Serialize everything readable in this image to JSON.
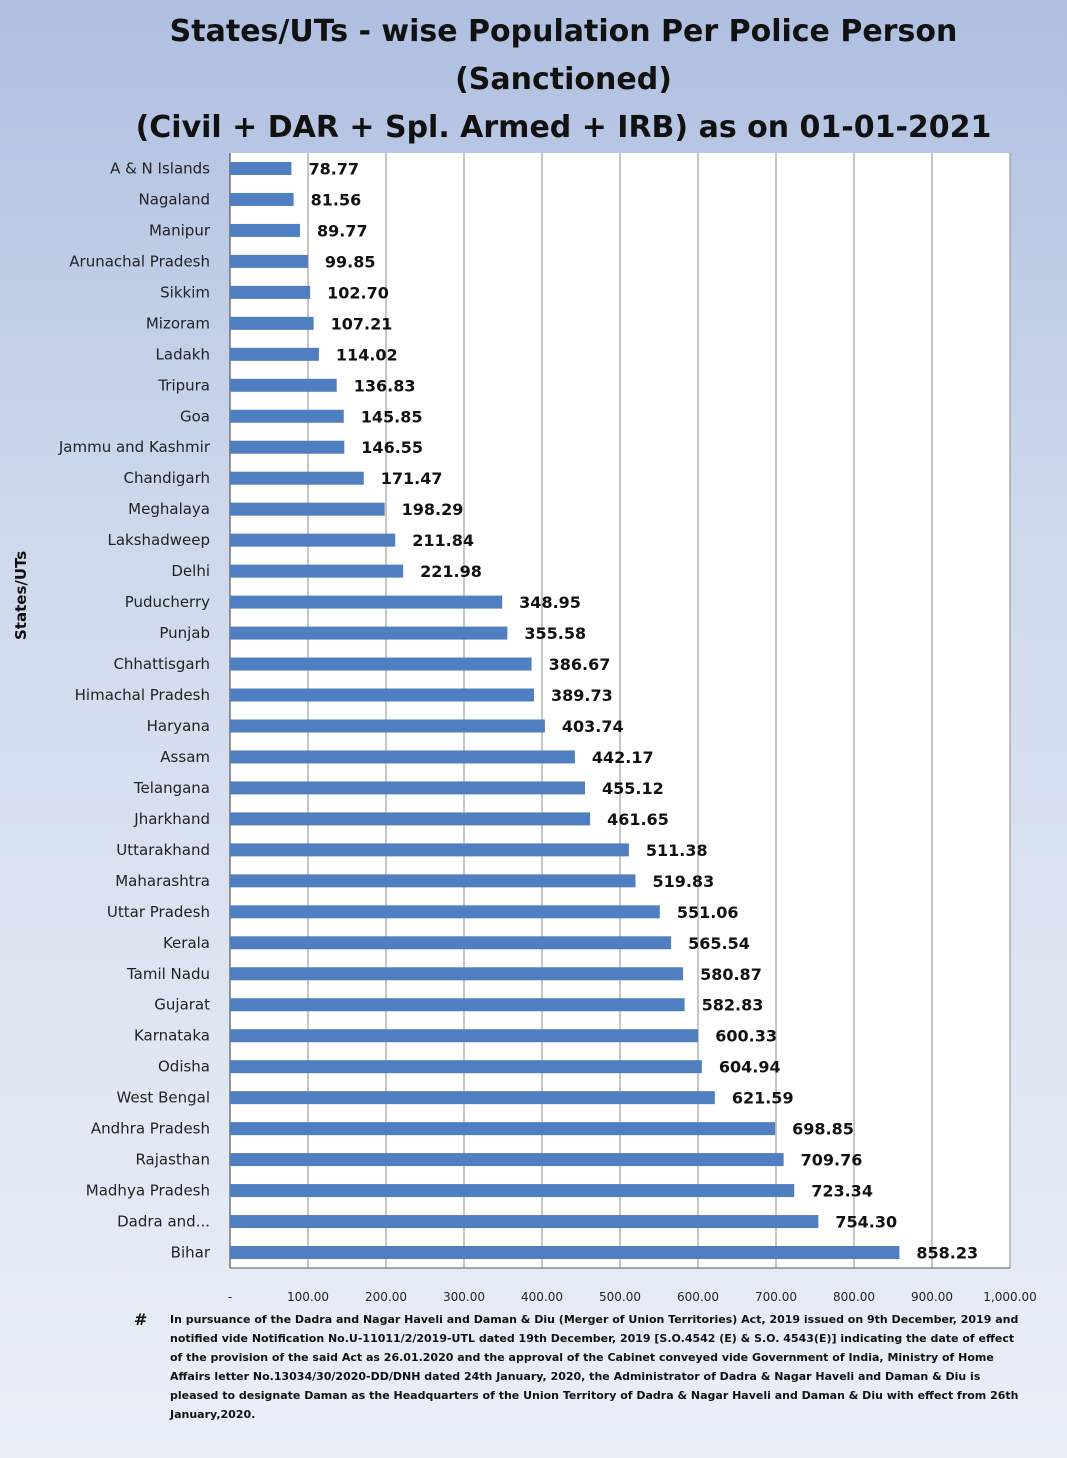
{
  "chart_data": {
    "type": "bar",
    "orientation": "horizontal",
    "title_lines": [
      "States/UTs - wise Population Per Police Person",
      "(Sanctioned)",
      "(Civil + DAR + Spl. Armed + IRB) as on 01-01-2021"
    ],
    "ylabel": "States/UTs",
    "xlim": [
      0,
      1000
    ],
    "grid": "vertical",
    "bar_color": "#4f7fc1",
    "x_ticks": [
      "-",
      "100.00",
      "200.00",
      "300.00",
      "400.00",
      "500.00",
      "600.00",
      "700.00",
      "800.00",
      "900.00",
      "1,000.00"
    ],
    "categories": [
      "A & N Islands",
      "Nagaland",
      "Manipur",
      "Arunachal Pradesh",
      "Sikkim",
      "Mizoram",
      "Ladakh",
      "Tripura",
      "Goa",
      "Jammu and Kashmir",
      "Chandigarh",
      "Meghalaya",
      "Lakshadweep",
      "Delhi",
      "Puducherry",
      "Punjab",
      "Chhattisgarh",
      "Himachal Pradesh",
      "Haryana",
      "Assam",
      "Telangana",
      "Jharkhand",
      "Uttarakhand",
      "Maharashtra",
      "Uttar Pradesh",
      "Kerala",
      "Tamil Nadu",
      "Gujarat",
      "Karnataka",
      "Odisha",
      "West Bengal",
      "Andhra Pradesh",
      "Rajasthan",
      "Madhya Pradesh",
      "Dadra and...",
      "Bihar"
    ],
    "values": [
      78.77,
      81.56,
      89.77,
      99.85,
      102.7,
      107.21,
      114.02,
      136.83,
      145.85,
      146.55,
      171.47,
      198.29,
      211.84,
      221.98,
      348.95,
      355.58,
      386.67,
      389.73,
      403.74,
      442.17,
      455.12,
      461.65,
      511.38,
      519.83,
      551.06,
      565.54,
      580.87,
      582.83,
      600.33,
      604.94,
      621.59,
      698.85,
      709.76,
      723.34,
      754.3,
      858.23
    ],
    "value_labels": [
      "78.77",
      "81.56",
      "89.77",
      "99.85",
      "102.70",
      "107.21",
      "114.02",
      "136.83",
      "145.85",
      "146.55",
      "171.47",
      "198.29",
      "211.84",
      "221.98",
      "348.95",
      "355.58",
      "386.67",
      "389.73",
      "403.74",
      "442.17",
      "455.12",
      "461.65",
      "511.38",
      "519.83",
      "551.06",
      "565.54",
      "580.87",
      "582.83",
      "600.33",
      "604.94",
      "621.59",
      "698.85",
      "709.76",
      "723.34",
      "754.30",
      "858.23"
    ]
  },
  "footnote": {
    "mark": "#",
    "text": "In pursuance of the Dadra and Nagar Haveli and Daman & Diu (Merger of Union Territories) Act, 2019 issued on 9th December, 2019 and notified vide Notification No.U-11011/2/2019-UTL dated 19th December, 2019 [S.O.4542 (E) & S.O. 4543(E)] indicating the date of effect of the provision of the said Act as 26.01.2020 and the approval of the Cabinet conveyed vide Government of India, Ministry of Home Affairs letter No.13034/30/2020-DD/DNH dated 24th January, 2020, the Administrator of Dadra & Nagar Haveli and Daman & Diu is pleased to designate Daman as the Headquarters of the Union Territory of Dadra & Nagar Haveli and Daman & Diu with effect from 26th January,2020."
  }
}
